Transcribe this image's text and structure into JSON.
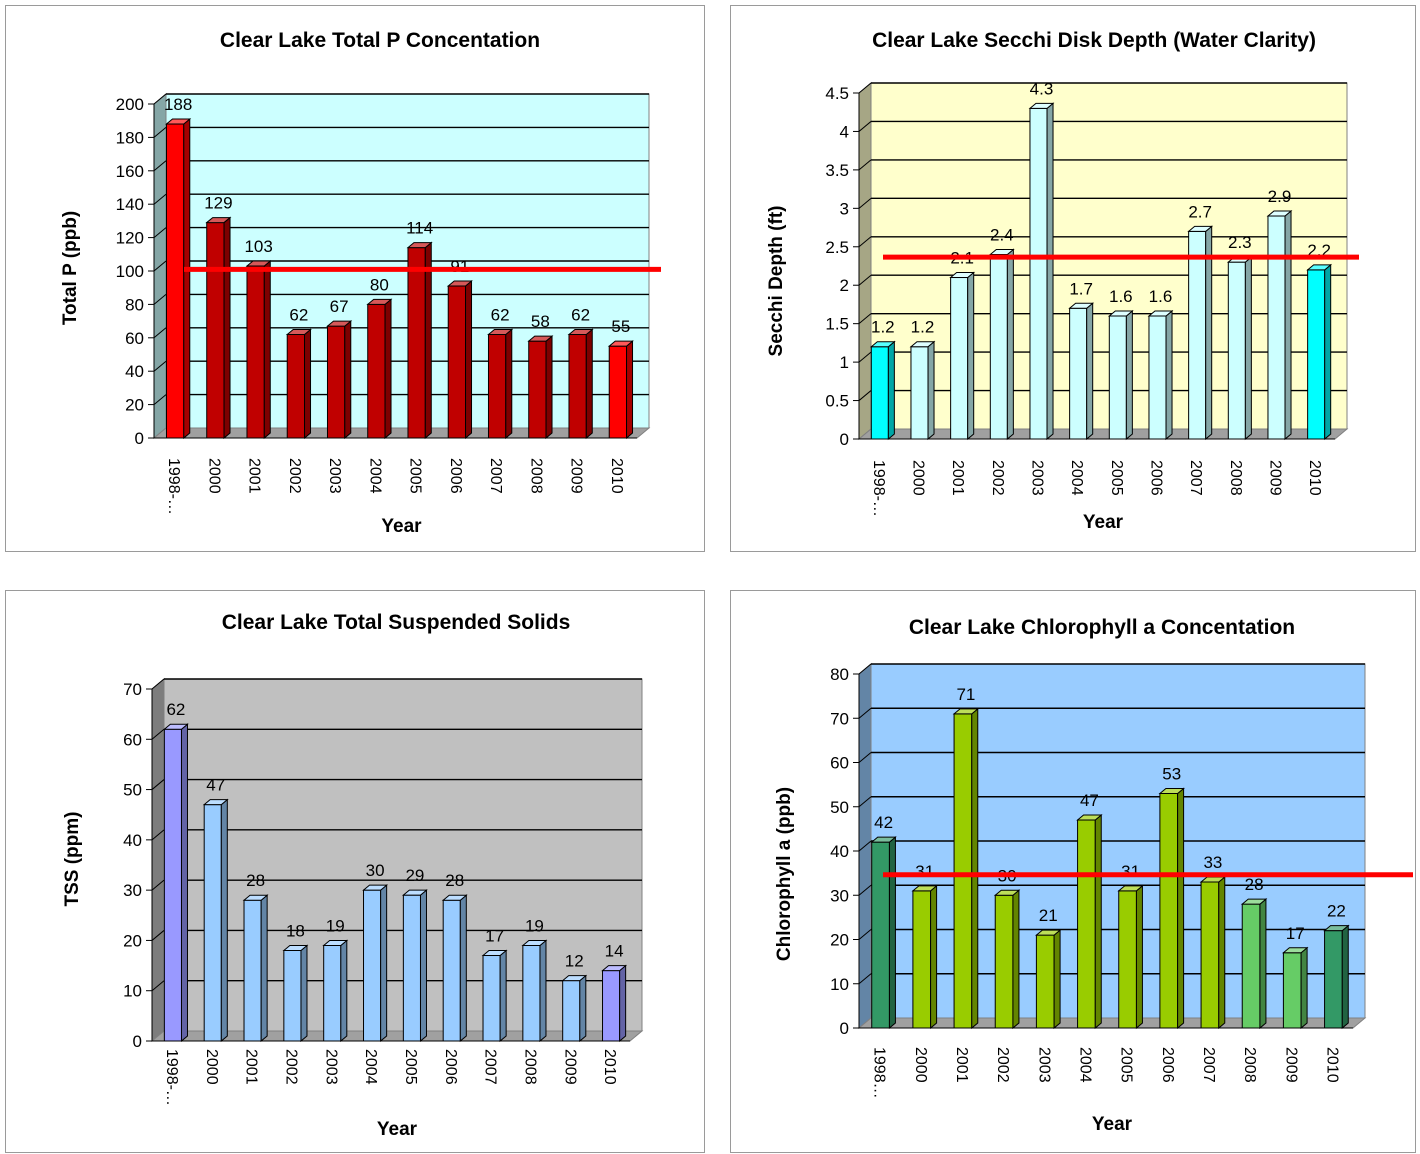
{
  "chart_data": [
    {
      "type": "bar",
      "title": "Clear Lake Total P Concentation",
      "xlabel": "Year",
      "ylabel": "Total P (ppb)",
      "categories": [
        "1998-…",
        "2000",
        "2001",
        "2002",
        "2003",
        "2004",
        "2005",
        "2006",
        "2007",
        "2008",
        "2009",
        "2010"
      ],
      "values": [
        188,
        129,
        103,
        62,
        67,
        80,
        114,
        91,
        62,
        58,
        62,
        55
      ],
      "data_labels": [
        "188",
        "129",
        "103",
        "62",
        "67",
        "80",
        "114",
        "91",
        "62",
        "58",
        "62",
        "55"
      ],
      "ylim": [
        0,
        200
      ],
      "yticks": [
        0,
        20,
        40,
        60,
        80,
        100,
        120,
        140,
        160,
        180,
        200
      ],
      "ytick_labels": [
        "0",
        "20",
        "40",
        "60",
        "80",
        "100",
        "120",
        "140",
        "160",
        "180",
        "200"
      ],
      "reference_line": 98,
      "grid": true,
      "colors": {
        "plot_bg": "#ccffff",
        "bar": "#c00000",
        "bar_highlight": "#ff0000",
        "line": "#ff0000"
      },
      "highlight_indices": [
        0,
        11
      ]
    },
    {
      "type": "bar",
      "title": "Clear Lake Secchi Disk Depth (Water Clarity)",
      "xlabel": "Year",
      "ylabel": "Secchi Depth (ft)",
      "categories": [
        "1998-…",
        "2000",
        "2001",
        "2002",
        "2003",
        "2004",
        "2005",
        "2006",
        "2007",
        "2008",
        "2009",
        "2010"
      ],
      "values": [
        1.2,
        1.2,
        2.1,
        2.4,
        4.3,
        1.7,
        1.6,
        1.6,
        2.7,
        2.3,
        2.9,
        2.2
      ],
      "data_labels": [
        "1.2",
        "1.2",
        "2.1",
        "2.4",
        "4.3",
        "1.7",
        "1.6",
        "1.6",
        "2.7",
        "2.3",
        "2.9",
        "2.2"
      ],
      "ylim": [
        0,
        4.5
      ],
      "yticks": [
        0,
        0.5,
        1,
        1.5,
        2,
        2.5,
        3,
        3.5,
        4,
        4.5
      ],
      "ytick_labels": [
        "0",
        "0.5",
        "1",
        "1.5",
        "2",
        "2.5",
        "3",
        "3.5",
        "4",
        "4.5"
      ],
      "reference_line": 2.3,
      "grid": true,
      "colors": {
        "plot_bg": "#ffffcc",
        "bar": "#ccffff",
        "bar_highlight": "#00ffff",
        "line": "#ff0000"
      },
      "highlight_indices": [
        0,
        11
      ]
    },
    {
      "type": "bar",
      "title": "Clear Lake Total Suspended Solids",
      "xlabel": "Year",
      "ylabel": "TSS (ppm)",
      "categories": [
        "1998-…",
        "2000",
        "2001",
        "2002",
        "2003",
        "2004",
        "2005",
        "2006",
        "2007",
        "2008",
        "2009",
        "2010"
      ],
      "values": [
        62,
        47,
        28,
        18,
        19,
        30,
        29,
        28,
        17,
        19,
        12,
        14
      ],
      "data_labels": [
        "62",
        "47",
        "28",
        "18",
        "19",
        "30",
        "29",
        "28",
        "17",
        "19",
        "12",
        "14"
      ],
      "ylim": [
        0,
        70
      ],
      "yticks": [
        0,
        10,
        20,
        30,
        40,
        50,
        60,
        70
      ],
      "ytick_labels": [
        "0",
        "10",
        "20",
        "30",
        "40",
        "50",
        "60",
        "70"
      ],
      "grid": true,
      "colors": {
        "plot_bg": "#c0c0c0",
        "bar": "#99ccff",
        "bar_highlight": "#9999ff"
      },
      "highlight_indices": [
        0,
        11
      ]
    },
    {
      "type": "bar",
      "title": "Clear Lake Chlorophyll a Concentation",
      "xlabel": "Year",
      "ylabel": "Chlorophyll a (ppb)",
      "categories": [
        "1998…",
        "2000",
        "2001",
        "2002",
        "2003",
        "2004",
        "2005",
        "2006",
        "2007",
        "2008",
        "2009",
        "2010"
      ],
      "values": [
        42,
        31,
        71,
        30,
        21,
        47,
        31,
        53,
        33,
        28,
        17,
        22
      ],
      "data_labels": [
        "42",
        "31",
        "71",
        "30",
        "21",
        "47",
        "31",
        "53",
        "33",
        "28",
        "17",
        "22"
      ],
      "ylim": [
        0,
        80
      ],
      "yticks": [
        0,
        10,
        20,
        30,
        40,
        50,
        60,
        70,
        80
      ],
      "ytick_labels": [
        "0",
        "10",
        "20",
        "30",
        "40",
        "50",
        "60",
        "70",
        "80"
      ],
      "reference_line": 33.5,
      "grid": true,
      "colors": {
        "plot_bg": "#99ccff",
        "bar": "#99cc00",
        "bar_highlight": "#339966",
        "bar_light": "#66cc66",
        "line": "#ff0000"
      },
      "highlight_indices": [
        0,
        11
      ],
      "light_indices": [
        9,
        10
      ]
    }
  ]
}
